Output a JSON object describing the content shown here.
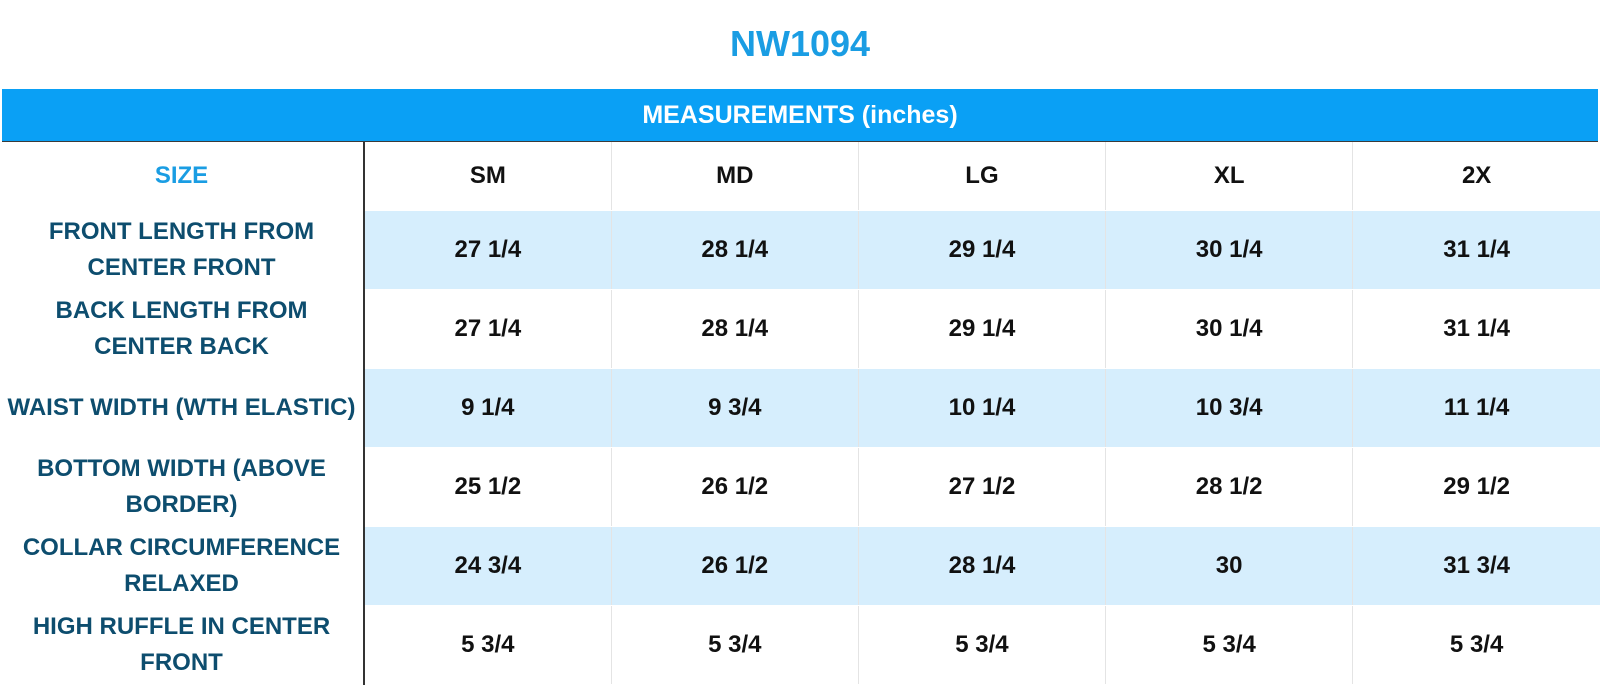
{
  "colors": {
    "title": "#1a9de3",
    "header_bg": "#0aa0f5",
    "size_label": "#1a9de3",
    "row_label": "#0d4d6e",
    "shaded_row": "#d6eefd"
  },
  "title": "NW1094",
  "measurements_header": "MEASUREMENTS (inches)",
  "size_label": "SIZE",
  "sizes": [
    "SM",
    "MD",
    "LG",
    "XL",
    "2X"
  ],
  "rows": [
    {
      "label": "FRONT LENGTH FROM CENTER FRONT",
      "values": [
        "27 1/4",
        "28 1/4",
        "29 1/4",
        "30 1/4",
        "31 1/4"
      ]
    },
    {
      "label": "BACK LENGTH FROM CENTER BACK",
      "values": [
        "27 1/4",
        "28 1/4",
        "29 1/4",
        "30 1/4",
        "31 1/4"
      ]
    },
    {
      "label": "WAIST WIDTH (WTH ELASTIC)",
      "values": [
        "9 1/4",
        "9 3/4",
        "10 1/4",
        "10 3/4",
        "11 1/4"
      ]
    },
    {
      "label": "BOTTOM WIDTH (ABOVE BORDER)",
      "values": [
        "25 1/2",
        "26 1/2",
        "27 1/2",
        "28 1/2",
        "29 1/2"
      ]
    },
    {
      "label": "COLLAR CIRCUMFERENCE RELAXED",
      "values": [
        "24 3/4",
        "26 1/2",
        "28 1/4",
        "30",
        "31 3/4"
      ]
    },
    {
      "label": "HIGH RUFFLE IN CENTER FRONT",
      "values": [
        "5 3/4",
        "5 3/4",
        "5 3/4",
        "5 3/4",
        "5 3/4"
      ]
    }
  ]
}
